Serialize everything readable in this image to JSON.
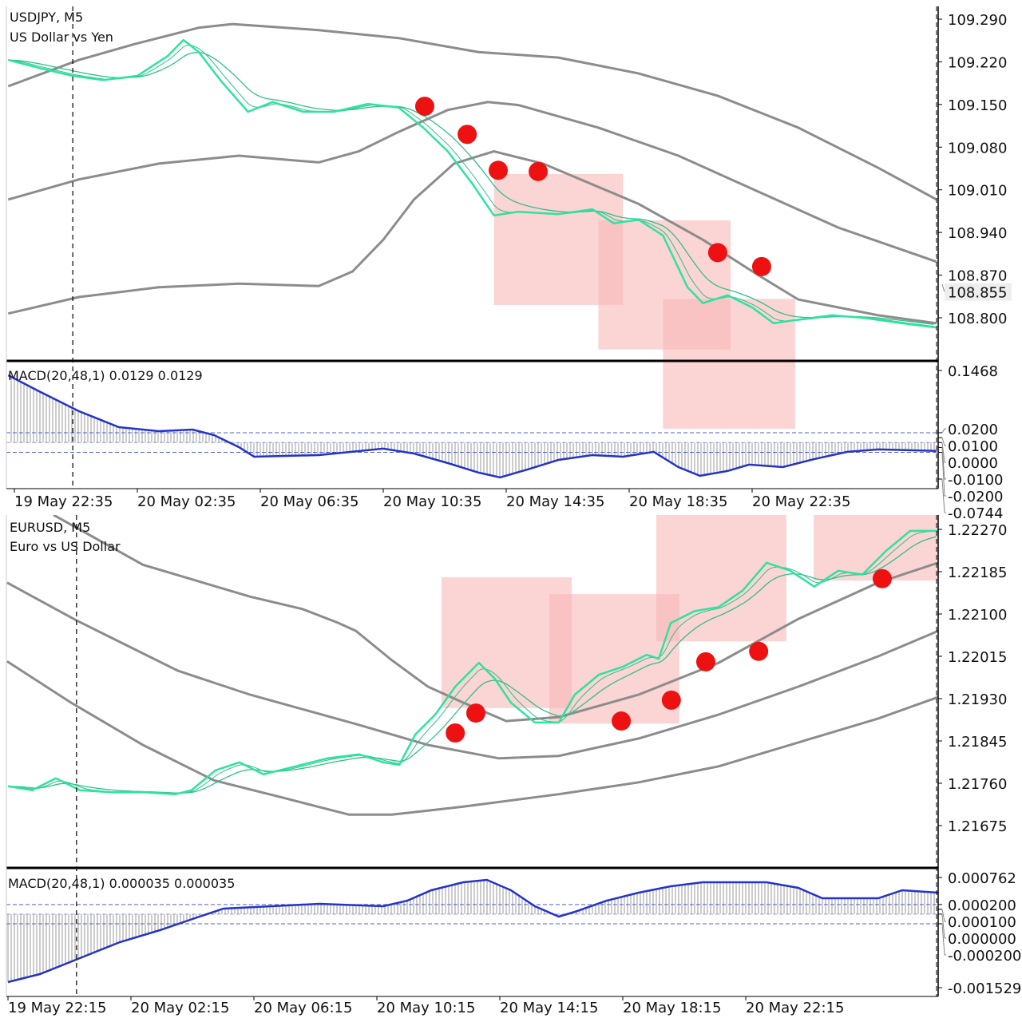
{
  "colors": {
    "ma_fast": "#2de3a0",
    "ma_slow": "#33bf8a",
    "band": "#8c8c8c",
    "macd_line": "#2433c8",
    "histogram": "#9a9a9a",
    "level": "#5060d0",
    "signal_dot": "#ee1111",
    "zone": "#f9b8b8"
  },
  "chart_data": [
    {
      "type": "line",
      "panel": "price",
      "symbol_title": "USDJPY, M5",
      "description": "US Dollar vs Yen",
      "x_unit": "hours since 19 May 22:35",
      "ylim": [
        108.745,
        109.3
      ],
      "y_ticks": [
        "109.290",
        "109.220",
        "109.150",
        "109.080",
        "109.010",
        "108.940",
        "108.870",
        "108.800"
      ],
      "bid_label": "108.855",
      "day_separator_h": 1.9,
      "ma_fast": {
        "x": [
          -0.2,
          0.8,
          1.9,
          2.9,
          4,
          5,
          5.5,
          6,
          6.7,
          7.6,
          8.4,
          9.4,
          10.4,
          11.5,
          12.5,
          13.3,
          14.1,
          14.9,
          15.6,
          16.4,
          17.7,
          18.8,
          19.5,
          20.3,
          21.1,
          21.9,
          22.4,
          23.2,
          24,
          24.7,
          25.5,
          26.6,
          27.6,
          28.9,
          30
        ],
        "y": [
          109.223,
          109.21,
          109.197,
          109.19,
          109.197,
          109.23,
          109.256,
          109.236,
          109.19,
          109.138,
          109.154,
          109.138,
          109.138,
          109.151,
          109.145,
          109.112,
          109.073,
          109.02,
          108.968,
          108.974,
          108.97,
          108.978,
          108.955,
          108.961,
          108.935,
          108.85,
          108.824,
          108.837,
          108.817,
          108.791,
          108.797,
          108.804,
          108.8,
          108.791,
          108.784
        ]
      },
      "bands": [
        {
          "name": "upper",
          "x": [
            -0.2,
            2.1,
            3.9,
            6.0,
            7.1,
            9.9,
            12.5,
            15.1,
            17.7,
            20.3,
            22.9,
            25.5,
            28.1,
            30
          ],
          "y": [
            109.18,
            109.223,
            109.249,
            109.276,
            109.282,
            109.272,
            109.259,
            109.236,
            109.227,
            109.201,
            109.164,
            109.112,
            109.046,
            108.994
          ]
        },
        {
          "name": "middle",
          "x": [
            -0.2,
            2.1,
            4.7,
            7.3,
            9.9,
            11.2,
            12.5,
            14.1,
            15.4,
            16.4,
            19.0,
            21.6,
            24.2,
            26.8,
            30
          ],
          "y": [
            108.994,
            109.027,
            109.053,
            109.066,
            109.055,
            109.073,
            109.105,
            109.141,
            109.154,
            109.149,
            109.112,
            109.066,
            109.007,
            108.948,
            108.892
          ]
        },
        {
          "name": "lower",
          "x": [
            -0.2,
            2.1,
            4.7,
            7.3,
            9.9,
            11.0,
            12.0,
            13.0,
            14.3,
            15.6,
            17.2,
            20.3,
            22.4,
            24.2,
            25.5,
            28.1,
            30
          ],
          "y": [
            108.807,
            108.834,
            108.85,
            108.856,
            108.852,
            108.876,
            108.928,
            108.994,
            109.053,
            109.073,
            109.053,
            108.987,
            108.928,
            108.87,
            108.83,
            108.804,
            108.791
          ]
        }
      ],
      "signals": {
        "x": [
          13.35,
          14.73,
          15.74,
          17.04,
          22.88,
          24.31
        ],
        "y": [
          109.147,
          109.101,
          109.042,
          109.04,
          108.907,
          108.884
        ]
      },
      "zones": [
        {
          "x0": 15.6,
          "x1": 19.8,
          "y0": 109.036,
          "y1": 108.821
        },
        {
          "x0": 19.0,
          "x1": 23.3,
          "y0": 108.96,
          "y1": 108.748
        },
        {
          "x0": 21.1,
          "x1": 25.4,
          "y0": 108.831,
          "y1": 108.618
        }
      ],
      "macd": {
        "title": "MACD(20,48,1) 0.0129 0.0129",
        "ylim": [
          -0.0744,
          0.1468
        ],
        "y_ticks": [
          "0.1468",
          "0.0200",
          "0.0100",
          "0.0000",
          "-0.0100",
          "-0.0200",
          "-0.0744"
        ],
        "levels": [
          0.02,
          -0.02
        ],
        "x": [
          -0.2,
          0.8,
          2.1,
          3.4,
          4.7,
          5.8,
          6.5,
          7.3,
          7.8,
          9.9,
          12.0,
          13.0,
          14.1,
          15.1,
          15.8,
          16.7,
          17.7,
          18.8,
          19.8,
          20.8,
          21.6,
          22.3,
          23.2,
          23.9,
          25.0,
          26.0,
          27.1,
          28.1,
          30
        ],
        "y": [
          0.137,
          0.1045,
          0.0639,
          0.0314,
          0.0232,
          0.0265,
          0.0151,
          -0.0093,
          -0.0288,
          -0.0256,
          -0.0125,
          -0.0223,
          -0.0418,
          -0.0613,
          -0.0711,
          -0.0548,
          -0.0353,
          -0.0256,
          -0.0288,
          -0.019,
          -0.05,
          -0.0678,
          -0.058,
          -0.045,
          -0.05,
          -0.034,
          -0.019,
          -0.014,
          -0.017
        ]
      },
      "x_ticks": [
        "19 May 22:35",
        "20 May 02:35",
        "20 May 06:35",
        "20 May 10:35",
        "20 May 14:35",
        "20 May 18:35",
        "20 May 22:35"
      ]
    },
    {
      "type": "line",
      "panel": "price",
      "symbol_title": "EURUSD, M5",
      "description": "Euro vs US Dollar",
      "x_unit": "hours since 19 May 22:15",
      "ylim": [
        1.2161,
        1.223
      ],
      "y_ticks": [
        "1.22270",
        "1.22185",
        "1.22100",
        "1.22015",
        "1.21930",
        "1.21845",
        "1.21760",
        "1.21675"
      ],
      "day_separator_h": 2.23,
      "ma_fast": {
        "x": [
          0,
          0.78,
          1.56,
          2.34,
          3.38,
          4.42,
          5.45,
          5.97,
          6.75,
          7.53,
          8.31,
          9.35,
          10.39,
          11.43,
          12.21,
          12.73,
          13.25,
          13.9,
          14.55,
          15.32,
          15.84,
          16.36,
          17.14,
          17.92,
          18.44,
          19.22,
          20.0,
          20.78,
          21.17,
          21.56,
          22.34,
          23.12,
          23.9,
          24.68,
          25.45,
          26.23,
          27.01,
          27.79,
          28.57,
          29.35,
          30.26
        ],
        "y": [
          1.21754,
          1.21746,
          1.2177,
          1.21746,
          1.21742,
          1.21742,
          1.21738,
          1.21746,
          1.21786,
          1.21802,
          1.21778,
          1.21794,
          1.2181,
          1.21818,
          1.21802,
          1.21797,
          1.21858,
          1.21898,
          1.21954,
          1.22002,
          1.2197,
          1.21922,
          1.21882,
          1.21882,
          1.21938,
          1.21978,
          1.21994,
          1.22018,
          1.2201,
          1.22082,
          1.22106,
          1.22114,
          1.22147,
          1.22203,
          1.22187,
          1.22155,
          1.22187,
          1.22179,
          1.22227,
          1.22267,
          1.22267
        ]
      },
      "bands": [
        {
          "name": "upper",
          "x": [
            1.48,
            4.39,
            7.87,
            9.58,
            10.75,
            11.32,
            12.49,
            13.66,
            14.81,
            16.21,
            17.92,
            20.52,
            23.12,
            25.71,
            28.31,
            30.26
          ],
          "y": [
            1.22299,
            1.22199,
            1.22135,
            1.2211,
            1.22082,
            1.22066,
            1.22007,
            1.21954,
            1.21922,
            1.21885,
            1.21893,
            1.21938,
            1.22002,
            1.2209,
            1.22163,
            1.22203
          ]
        },
        {
          "name": "middle",
          "x": [
            -0.03,
            2.23,
            5.53,
            7.87,
            11.32,
            13.66,
            15.97,
            17.92,
            20.52,
            23.12,
            25.71,
            28.31,
            30.26
          ],
          "y": [
            1.22163,
            1.22087,
            1.21986,
            1.21938,
            1.21879,
            1.21837,
            1.2181,
            1.21815,
            1.2185,
            1.21898,
            1.21954,
            1.22015,
            1.22066
          ]
        },
        {
          "name": "lower",
          "x": [
            -0.03,
            2.05,
            4.39,
            6.7,
            9.01,
            11.09,
            12.49,
            14.81,
            17.92,
            20.52,
            23.12,
            25.71,
            28.31,
            30.26
          ],
          "y": [
            1.22005,
            1.21922,
            1.21837,
            1.21766,
            1.2173,
            1.21697,
            1.21697,
            1.21713,
            1.21738,
            1.21762,
            1.21794,
            1.21842,
            1.2189,
            1.21933
          ]
        }
      ],
      "signals": {
        "x": [
          14.55,
          15.22,
          19.95,
          21.58,
          22.7,
          24.42,
          28.44
        ],
        "y": [
          1.21861,
          1.21901,
          1.21885,
          1.21927,
          1.22004,
          1.22025,
          1.22171
        ]
      },
      "zones": [
        {
          "x0": 14.1,
          "x1": 18.34,
          "y0": 1.22174,
          "y1": 1.21911
        },
        {
          "x0": 17.61,
          "x1": 21.84,
          "y0": 1.2214,
          "y1": 1.2188
        },
        {
          "x0": 21.09,
          "x1": 25.32,
          "y0": 1.22299,
          "y1": 1.22045
        },
        {
          "x0": 26.21,
          "x1": 30.44,
          "y0": 1.22299,
          "y1": 1.22167
        }
      ],
      "macd": {
        "title": "MACD(20,48,1) 0.000035 0.000035",
        "ylim": [
          -0.001529,
          0.000762
        ],
        "y_ticks": [
          "0.000762",
          "0.000200",
          "0.000100",
          "0.000000",
          "-0.000200",
          "-0.001529"
        ],
        "levels": [
          0.0002,
          -0.0002
        ],
        "x": [
          0,
          1.04,
          2.34,
          3.64,
          4.94,
          6.23,
          7.01,
          8.05,
          10.13,
          12.21,
          12.99,
          13.77,
          14.81,
          15.58,
          16.36,
          17.14,
          17.92,
          18.44,
          19.48,
          20.52,
          21.56,
          22.6,
          23.64,
          24.68,
          25.71,
          26.49,
          27.53,
          28.31,
          29.09,
          30.26
        ],
        "y": [
          -0.001413,
          -0.001247,
          -0.000915,
          -0.000583,
          -0.000334,
          -5.1e-05,
          0.000115,
          0.000148,
          0.000214,
          0.000164,
          0.000281,
          0.000496,
          0.000662,
          0.000712,
          0.000496,
          0.000164,
          -5.1e-05,
          4.8e-05,
          0.000281,
          0.000447,
          0.000579,
          0.000662,
          0.000662,
          0.000662,
          0.000546,
          0.00033,
          0.00033,
          0.00033,
          0.000496,
          0.000447
        ]
      },
      "x_ticks": [
        "19 May 22:15",
        "20 May 02:15",
        "20 May 06:15",
        "20 May 10:15",
        "20 May 14:15",
        "20 May 18:15",
        "20 May 22:15"
      ]
    }
  ]
}
